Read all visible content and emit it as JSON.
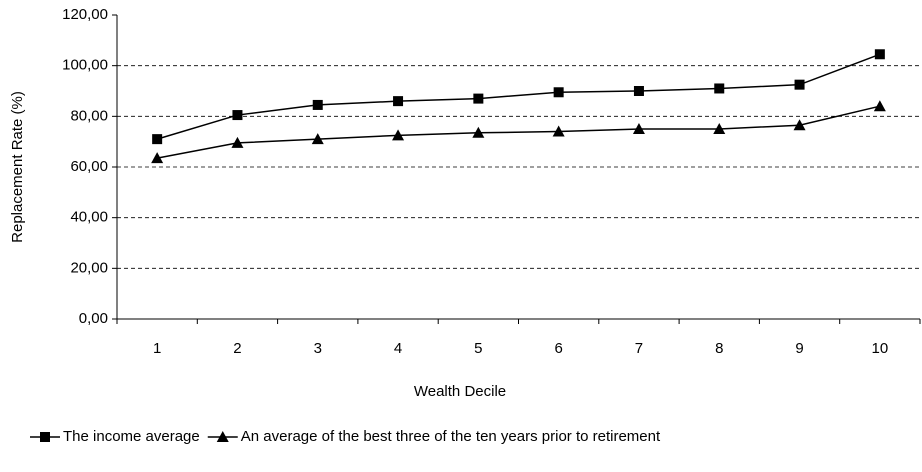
{
  "chart_data": {
    "type": "line",
    "x_label": "Wealth Decile",
    "y_label": "Replacement Rate (%)",
    "categories": [
      "1",
      "2",
      "3",
      "4",
      "5",
      "6",
      "7",
      "8",
      "9",
      "10"
    ],
    "series": [
      {
        "name": "The income average",
        "color": "#000000",
        "marker": "square",
        "values": [
          71,
          80.5,
          84.5,
          86,
          87,
          89.5,
          90,
          91,
          92.5,
          104.5
        ]
      },
      {
        "name": "An average of the best three of the ten years prior to retirement",
        "color": "#000000",
        "marker": "triangle",
        "values": [
          63.5,
          69.5,
          71,
          72.5,
          73.5,
          74,
          75,
          75,
          76.5,
          84
        ]
      }
    ],
    "ylim": [
      0,
      120
    ],
    "yticks": [
      {
        "value": 0,
        "label": "0,00"
      },
      {
        "value": 20,
        "label": "20,00"
      },
      {
        "value": 40,
        "label": "40,00"
      },
      {
        "value": 60,
        "label": "60,00"
      },
      {
        "value": 80,
        "label": "80,00"
      },
      {
        "value": 100,
        "label": "100,00"
      },
      {
        "value": 120,
        "label": "120,00"
      }
    ],
    "grid": true,
    "legend": "bottom"
  }
}
